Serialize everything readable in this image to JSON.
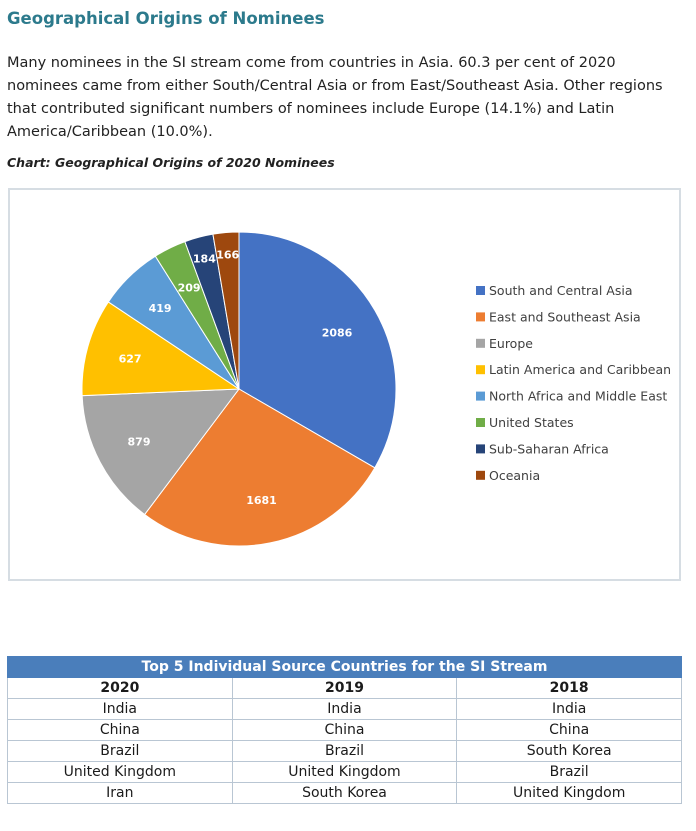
{
  "heading": "Geographical Origins of Nominees",
  "intro": "Many nominees in the SI stream come from countries in Asia. 60.3 per cent of 2020 nominees came from either South/Central Asia or from East/Southeast Asia. Other regions that contributed significant numbers of nominees include Europe (14.1%) and Latin America/Caribbean (10.0%).",
  "chart_caption": "Chart: Geographical Origins of 2020 Nominees",
  "chart_data": {
    "type": "pie",
    "title": "",
    "legend_position": "right",
    "slices": [
      {
        "label": "South and Central Asia",
        "value": 2086,
        "color": "#4472c4"
      },
      {
        "label": "East and Southeast Asia",
        "value": 1681,
        "color": "#ed7d31"
      },
      {
        "label": "Europe",
        "value": 879,
        "color": "#a5a5a5"
      },
      {
        "label": "Latin America and Caribbean",
        "value": 627,
        "color": "#ffc000"
      },
      {
        "label": "North Africa and Middle East",
        "value": 419,
        "color": "#5b9bd5"
      },
      {
        "label": "United States",
        "value": 209,
        "color": "#70ad47"
      },
      {
        "label": "Sub-Saharan Africa",
        "value": 184,
        "color": "#264478"
      },
      {
        "label": "Oceania",
        "value": 166,
        "color": "#9e480e"
      }
    ]
  },
  "table": {
    "title": "Top 5 Individual Source Countries for the SI Stream",
    "columns": [
      "2020",
      "2019",
      "2018"
    ],
    "rows": [
      [
        "India",
        "India",
        "India"
      ],
      [
        "China",
        "China",
        "China"
      ],
      [
        "Brazil",
        "Brazil",
        "South Korea"
      ],
      [
        "United Kingdom",
        "United Kingdom",
        "Brazil"
      ],
      [
        "Iran",
        "South Korea",
        "United Kingdom"
      ]
    ]
  }
}
